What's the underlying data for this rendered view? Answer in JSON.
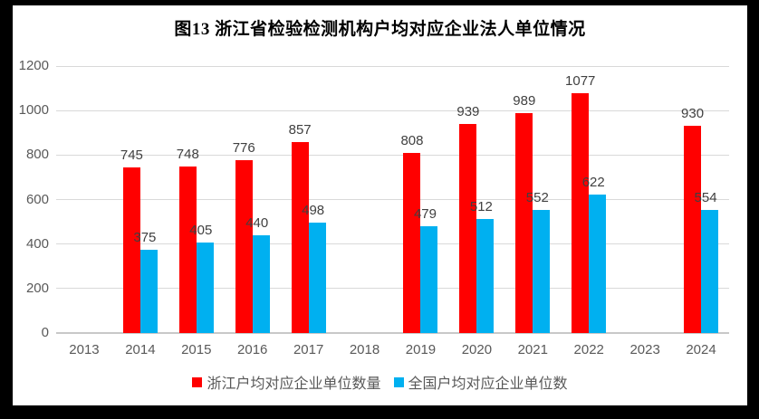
{
  "frame": {
    "background_color": "#000000",
    "panel_color": "#ffffff"
  },
  "chart_data": {
    "type": "bar",
    "title": "图13 浙江省检验检测机构户均对应企业法人单位情况",
    "categories": [
      "2013",
      "2014",
      "2015",
      "2016",
      "2017",
      "2018",
      "2019",
      "2020",
      "2021",
      "2022",
      "2023",
      "2024"
    ],
    "series": [
      {
        "name": "浙江户均对应企业单位数量",
        "color": "#ff0000",
        "values": [
          null,
          745,
          748,
          776,
          857,
          null,
          808,
          939,
          989,
          1077,
          null,
          930
        ]
      },
      {
        "name": "全国户均对应企业单位数",
        "color": "#00b0f0",
        "values": [
          null,
          375,
          405,
          440,
          498,
          null,
          479,
          512,
          552,
          622,
          null,
          554
        ]
      }
    ],
    "xlabel": "",
    "ylabel": "",
    "ylim": [
      0,
      1200
    ],
    "yticks": [
      0,
      200,
      400,
      600,
      800,
      1000,
      1200
    ],
    "grid": true,
    "data_labels": true,
    "legend_position": "bottom"
  }
}
